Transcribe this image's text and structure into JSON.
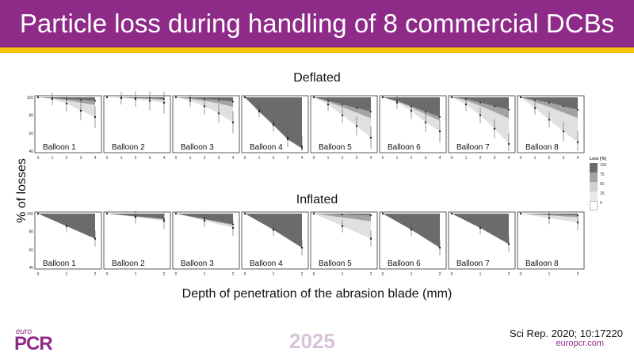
{
  "slide": {
    "title": "Particle loss during handling of 8 commercial DCBs",
    "section_deflated": "Deflated",
    "section_inflated": "Inflated",
    "ylabel": "% of losses",
    "xlabel": "Depth of penetration of the abrasion blade (mm)",
    "citation": "Sci Rep. 2020; 10:17220",
    "website": "europcr.com",
    "year": "2025",
    "logo_small": "euro",
    "logo_big": "PCR"
  },
  "legend": {
    "title": "Loss [%]",
    "items": [
      {
        "value": "100",
        "color": "#6b6b6b"
      },
      {
        "value": "75",
        "color": "#a3a3a3"
      },
      {
        "value": "50",
        "color": "#cfcfcf"
      },
      {
        "value": "25",
        "color": "#e8e8e8"
      },
      {
        "value": "0",
        "color": "#ffffff"
      }
    ]
  },
  "colors": {
    "brand": "#8e2a87",
    "stripe": "#f4c300",
    "dark": "#6b6b6b",
    "mid": "#a3a3a3",
    "light": "#e0e0e0"
  },
  "chart_data": [
    {
      "type": "area",
      "group": "Deflated",
      "ylim": [
        40,
        100
      ],
      "yticks": [
        "100",
        "80",
        "60",
        "40"
      ],
      "xticks": [
        "0",
        "1",
        "2",
        "3",
        "4"
      ],
      "panels": [
        {
          "label": "Balloon 1",
          "x": [
            0,
            1,
            2,
            3,
            4
          ],
          "remaining": [
            100,
            98,
            93,
            85,
            78
          ],
          "dark_from": [
            100,
            99,
            98,
            97,
            96
          ]
        },
        {
          "label": "Balloon 2",
          "x": [
            0,
            1,
            2,
            3,
            4
          ],
          "remaining": [
            100,
            99,
            98,
            96,
            94
          ],
          "dark_from": [
            100,
            100,
            99,
            99,
            98
          ]
        },
        {
          "label": "Balloon 3",
          "x": [
            0,
            1,
            2,
            3,
            4
          ],
          "remaining": [
            100,
            96,
            90,
            82,
            72
          ],
          "dark_from": [
            100,
            99,
            98,
            97,
            95
          ]
        },
        {
          "label": "Balloon 4",
          "x": [
            0,
            1,
            2,
            3,
            4
          ],
          "remaining": [
            100,
            85,
            70,
            55,
            45
          ],
          "dark_from": [
            100,
            84,
            69,
            53,
            43
          ]
        },
        {
          "label": "Balloon 5",
          "x": [
            0,
            1,
            2,
            3,
            4
          ],
          "remaining": [
            100,
            92,
            80,
            68,
            55
          ],
          "dark_from": [
            100,
            96,
            92,
            88,
            84
          ]
        },
        {
          "label": "Balloon 6",
          "x": [
            0,
            1,
            2,
            3,
            4
          ],
          "remaining": [
            100,
            94,
            85,
            72,
            62
          ],
          "dark_from": [
            100,
            96,
            90,
            84,
            78
          ]
        },
        {
          "label": "Balloon 7",
          "x": [
            0,
            1,
            2,
            3,
            4
          ],
          "remaining": [
            100,
            92,
            80,
            65,
            48
          ],
          "dark_from": [
            100,
            98,
            94,
            90,
            86
          ]
        },
        {
          "label": "Balloon 8",
          "x": [
            0,
            1,
            2,
            3,
            4
          ],
          "remaining": [
            100,
            88,
            75,
            62,
            50
          ],
          "dark_from": [
            100,
            97,
            94,
            90,
            86
          ]
        }
      ]
    },
    {
      "type": "area",
      "group": "Inflated",
      "ylim": [
        40,
        100
      ],
      "yticks": [
        "100",
        "80",
        "60",
        "40"
      ],
      "xticks": [
        "0",
        "1",
        "2"
      ],
      "panels": [
        {
          "label": "Balloon 1",
          "x": [
            0,
            1,
            2
          ],
          "remaining": [
            100,
            86,
            72
          ],
          "dark_from": [
            100,
            86,
            72
          ]
        },
        {
          "label": "Balloon 2",
          "x": [
            0,
            1,
            2
          ],
          "remaining": [
            100,
            96,
            92
          ],
          "dark_from": [
            100,
            97,
            94
          ]
        },
        {
          "label": "Balloon 3",
          "x": [
            0,
            1,
            2
          ],
          "remaining": [
            100,
            92,
            84
          ],
          "dark_from": [
            100,
            94,
            88
          ]
        },
        {
          "label": "Balloon 4",
          "x": [
            0,
            1,
            2
          ],
          "remaining": [
            100,
            82,
            62
          ],
          "dark_from": [
            100,
            82,
            62
          ]
        },
        {
          "label": "Balloon 5",
          "x": [
            0,
            1,
            2
          ],
          "remaining": [
            100,
            86,
            72
          ],
          "dark_from": [
            100,
            99,
            98
          ]
        },
        {
          "label": "Balloon 6",
          "x": [
            0,
            1,
            2
          ],
          "remaining": [
            100,
            82,
            62
          ],
          "dark_from": [
            100,
            82,
            62
          ]
        },
        {
          "label": "Balloon 7",
          "x": [
            0,
            1,
            2
          ],
          "remaining": [
            100,
            84,
            66
          ],
          "dark_from": [
            100,
            84,
            66
          ]
        },
        {
          "label": "Balloon 8",
          "x": [
            0,
            1,
            2
          ],
          "remaining": [
            100,
            95,
            90
          ],
          "dark_from": [
            100,
            99,
            98
          ]
        }
      ]
    }
  ]
}
